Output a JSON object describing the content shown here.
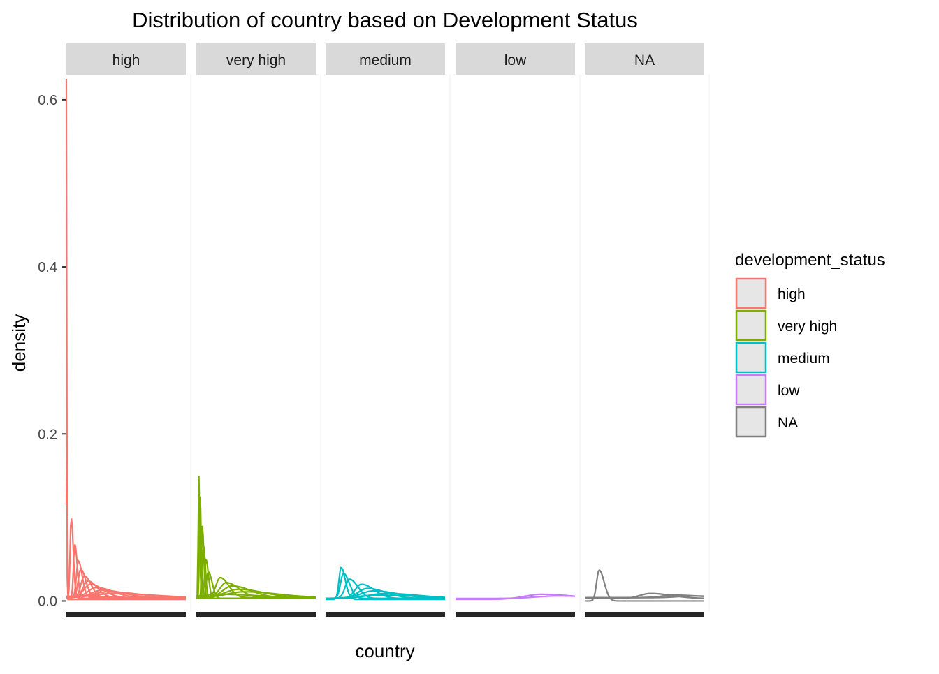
{
  "chart_data": {
    "type": "line",
    "title": "Distribution of country based on Development Status",
    "xlabel": "country",
    "ylabel": "density",
    "ylim": [
      -0.013,
      0.63
    ],
    "y_ticks": [
      0.0,
      0.2,
      0.4,
      0.6
    ],
    "y_tick_labels": [
      "0.0",
      "0.2",
      "0.4",
      "0.6"
    ],
    "grid": false,
    "legend": {
      "title": "development_status",
      "position": "right",
      "entries": [
        {
          "label": "high",
          "color": "#F8766D"
        },
        {
          "label": "very high",
          "color": "#7CAE00"
        },
        {
          "label": "medium",
          "color": "#00BFC4"
        },
        {
          "label": "low",
          "color": "#C77CFF"
        },
        {
          "label": "NA",
          "color": "#7F7F7F"
        }
      ]
    },
    "facets": [
      {
        "label": "high",
        "color": "#F8766D",
        "series": [
          {
            "peak_x": 0.0,
            "peak": 0.625,
            "width": 0.004,
            "tail": 0.002
          },
          {
            "peak_x": 0.003,
            "peak": 0.31,
            "width": 0.006,
            "tail": 0.002
          },
          {
            "peak_x": 0.04,
            "peak": 0.1,
            "width": 0.025,
            "tail": 0.003
          },
          {
            "peak_x": 0.07,
            "peak": 0.068,
            "width": 0.03,
            "tail": 0.003
          },
          {
            "peak_x": 0.1,
            "peak": 0.048,
            "width": 0.045,
            "tail": 0.004
          },
          {
            "peak_x": 0.12,
            "peak": 0.038,
            "width": 0.06,
            "tail": 0.004
          },
          {
            "peak_x": 0.15,
            "peak": 0.03,
            "width": 0.08,
            "tail": 0.004
          },
          {
            "peak_x": 0.18,
            "peak": 0.024,
            "width": 0.11,
            "tail": 0.004
          },
          {
            "peak_x": 0.2,
            "peak": 0.02,
            "width": 0.15,
            "tail": 0.004
          },
          {
            "peak_x": 0.25,
            "peak": 0.016,
            "width": 0.2,
            "tail": 0.004
          },
          {
            "peak_x": 0.3,
            "peak": 0.013,
            "width": 0.25,
            "tail": 0.004
          },
          {
            "peak_x": 0.35,
            "peak": 0.011,
            "width": 0.35,
            "tail": 0.004
          },
          {
            "peak_x": 0.4,
            "peak": 0.009,
            "width": 0.45,
            "tail": 0.004
          },
          {
            "peak_x": 0.1,
            "peak": 0.006,
            "width": 0.5,
            "tail": 0.002
          }
        ]
      },
      {
        "label": "very high",
        "color": "#7CAE00",
        "series": [
          {
            "peak_x": 0.02,
            "peak": 0.152,
            "width": 0.012,
            "tail": 0.003
          },
          {
            "peak_x": 0.03,
            "peak": 0.13,
            "width": 0.014,
            "tail": 0.003
          },
          {
            "peak_x": 0.05,
            "peak": 0.09,
            "width": 0.018,
            "tail": 0.003
          },
          {
            "peak_x": 0.06,
            "peak": 0.065,
            "width": 0.022,
            "tail": 0.003
          },
          {
            "peak_x": 0.08,
            "peak": 0.05,
            "width": 0.03,
            "tail": 0.003
          },
          {
            "peak_x": 0.1,
            "peak": 0.035,
            "width": 0.045,
            "tail": 0.003
          },
          {
            "peak_x": 0.2,
            "peak": 0.028,
            "width": 0.1,
            "tail": 0.004
          },
          {
            "peak_x": 0.25,
            "peak": 0.022,
            "width": 0.15,
            "tail": 0.004
          },
          {
            "peak_x": 0.3,
            "peak": 0.018,
            "width": 0.22,
            "tail": 0.004
          },
          {
            "peak_x": 0.35,
            "peak": 0.014,
            "width": 0.3,
            "tail": 0.004
          },
          {
            "peak_x": 0.4,
            "peak": 0.011,
            "width": 0.4,
            "tail": 0.004
          },
          {
            "peak_x": 0.2,
            "peak": 0.008,
            "width": 0.5,
            "tail": 0.003
          }
        ]
      },
      {
        "label": "medium",
        "color": "#00BFC4",
        "series": [
          {
            "peak_x": 0.13,
            "peak": 0.04,
            "width": 0.05,
            "tail": 0.002
          },
          {
            "peak_x": 0.15,
            "peak": 0.033,
            "width": 0.07,
            "tail": 0.003
          },
          {
            "peak_x": 0.2,
            "peak": 0.026,
            "width": 0.1,
            "tail": 0.003
          },
          {
            "peak_x": 0.3,
            "peak": 0.02,
            "width": 0.15,
            "tail": 0.003
          },
          {
            "peak_x": 0.35,
            "peak": 0.015,
            "width": 0.22,
            "tail": 0.003
          },
          {
            "peak_x": 0.4,
            "peak": 0.012,
            "width": 0.3,
            "tail": 0.003
          },
          {
            "peak_x": 0.5,
            "peak": 0.009,
            "width": 0.4,
            "tail": 0.003
          },
          {
            "peak_x": 0.45,
            "peak": 0.007,
            "width": 0.5,
            "tail": 0.003
          }
        ]
      },
      {
        "label": "low",
        "color": "#C77CFF",
        "series": [
          {
            "peak_x": 0.72,
            "peak": 0.008,
            "width": 0.4,
            "tail": 0.002
          },
          {
            "peak_x": 0.85,
            "peak": 0.006,
            "width": 0.5,
            "tail": 0.003
          }
        ]
      },
      {
        "label": "NA",
        "color": "#7F7F7F",
        "series": [
          {
            "peak_x": 0.12,
            "peak": 0.037,
            "width": 0.06,
            "tail": 0.0
          },
          {
            "peak_x": 0.55,
            "peak": 0.009,
            "width": 0.25,
            "tail": 0.003
          },
          {
            "peak_x": 0.75,
            "peak": 0.007,
            "width": 0.3,
            "tail": 0.004
          },
          {
            "peak_x": 0.9,
            "peak": 0.006,
            "width": 0.35,
            "tail": 0.004
          }
        ]
      }
    ]
  }
}
